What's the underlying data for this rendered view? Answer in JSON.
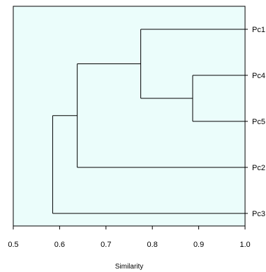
{
  "chart_data": {
    "type": "dendrogram",
    "xlabel": "Similarity",
    "xlim": [
      0.5,
      1.0
    ],
    "x_ticks": [
      "0.5",
      "0.6",
      "0.7",
      "0.8",
      "0.9",
      "1.0"
    ],
    "leaves": [
      "Pc1",
      "Pc4",
      "Pc5",
      "Pc2",
      "Pc3"
    ],
    "merges": [
      {
        "id": "A",
        "children": [
          "Pc4",
          "Pc5"
        ],
        "similarity": 0.887
      },
      {
        "id": "B",
        "children": [
          "Pc1",
          "A"
        ],
        "similarity": 0.775
      },
      {
        "id": "C",
        "children": [
          "B",
          "Pc2"
        ],
        "similarity": 0.638
      },
      {
        "id": "D",
        "children": [
          "C",
          "Pc3"
        ],
        "similarity": 0.585
      }
    ],
    "background_color": "#ebfdfb",
    "line_color": "#000000",
    "grid": false
  }
}
